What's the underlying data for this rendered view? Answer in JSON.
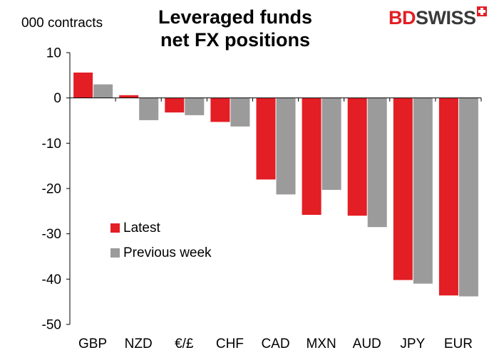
{
  "title_line1": "Leveraged funds",
  "title_line2": "net FX positions",
  "logo_text_bd": "BD",
  "logo_text_swiss": "SWISS",
  "colors": {
    "latest": "#e31e24",
    "previous": "#9b9b9b",
    "axis": "#000000",
    "brand_red": "#e31e24",
    "brand_dark": "#3a3a3a"
  },
  "chart_data": {
    "type": "bar",
    "title": "Leveraged funds net FX positions",
    "ylabel": "000 contracts",
    "xlabel": "",
    "ylim": [
      -50,
      10
    ],
    "yticks": [
      10,
      0,
      -10,
      -20,
      -30,
      -40,
      -50
    ],
    "grid": false,
    "legend_position": "lower-left",
    "categories": [
      "GBP",
      "NZD",
      "€/£",
      "CHF",
      "CAD",
      "MXN",
      "AUD",
      "JPY",
      "EUR"
    ],
    "series": [
      {
        "name": "Latest",
        "values": [
          5.6,
          0.6,
          -3.2,
          -5.3,
          -18.0,
          -25.8,
          -26.0,
          -40.2,
          -43.6
        ]
      },
      {
        "name": "Previous week",
        "values": [
          3.0,
          -4.9,
          -3.8,
          -6.3,
          -21.3,
          -20.3,
          -28.5,
          -41.0,
          -43.8
        ]
      }
    ]
  }
}
